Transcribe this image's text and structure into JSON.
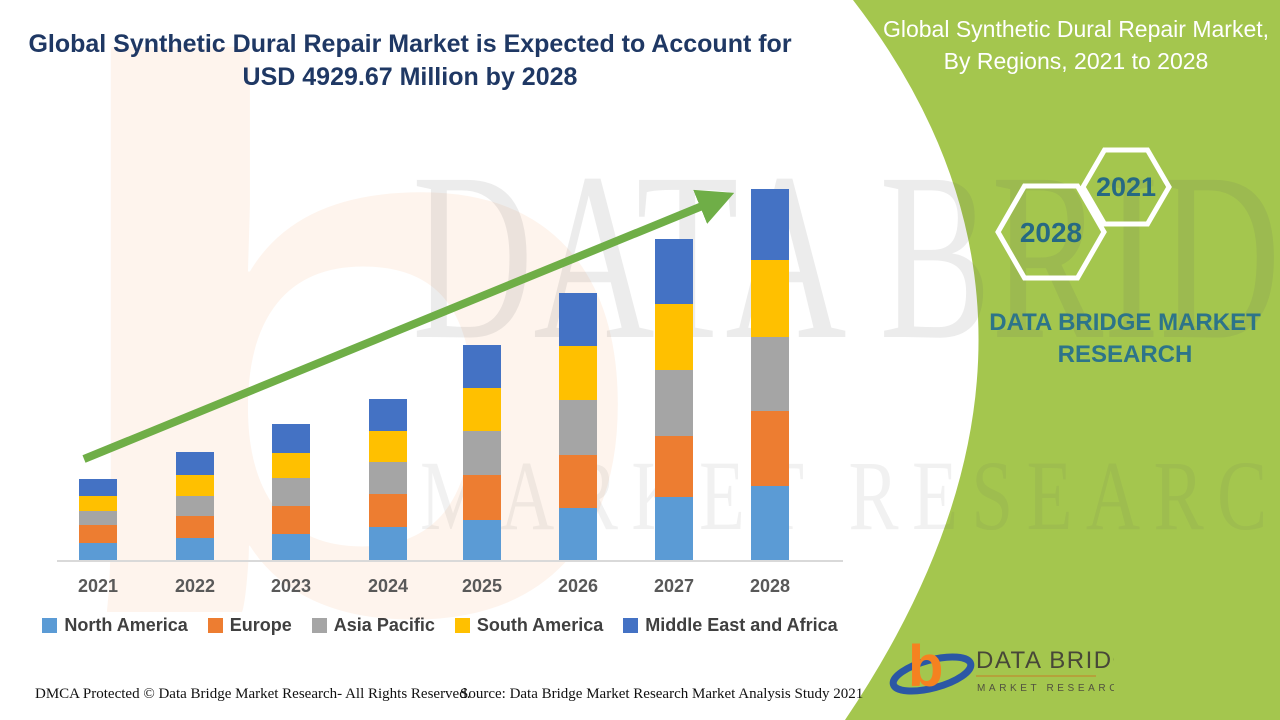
{
  "header": {
    "title_line1": "Global Synthetic Dural Repair Market is Expected to Account for",
    "title_line2": "USD 4929.67 Million by 2028"
  },
  "side_panel": {
    "bg_color": "#A4C64E",
    "title": "Global Synthetic Dural Repair Market, By Regions, 2021 to 2028",
    "hexagons": [
      {
        "label": "2021"
      },
      {
        "label": "2028"
      }
    ],
    "brand_line1": "DATA BRIDGE MARKET",
    "brand_line2": "RESEARCH",
    "text_color": "#2D7489"
  },
  "chart_data": {
    "type": "bar",
    "subtype": "stacked-column",
    "title": "Global Synthetic Dural Repair Market is Expected to Account for USD 4929.67 Million by 2028",
    "units": "USD Million",
    "categories": [
      "2021",
      "2022",
      "2023",
      "2024",
      "2025",
      "2026",
      "2027",
      "2028"
    ],
    "series": [
      {
        "name": "North America",
        "color": "#5B9BD5",
        "values": [
          239,
          305,
          358,
          451,
          543,
          702,
          848,
          994
        ]
      },
      {
        "name": "Europe",
        "color": "#ED7D31",
        "values": [
          239,
          292,
          371,
          437,
          596,
          702,
          808,
          994
        ]
      },
      {
        "name": "Asia Pacific",
        "color": "#A5A5A5",
        "values": [
          186,
          265,
          371,
          424,
          583,
          729,
          875,
          981
        ]
      },
      {
        "name": "South America",
        "color": "#FFC000",
        "values": [
          199,
          278,
          331,
          411,
          570,
          716,
          875,
          1020
        ]
      },
      {
        "name": "Middle East and Africa",
        "color": "#4472C4",
        "values": [
          225,
          305,
          384,
          424,
          570,
          702,
          861,
          941
        ]
      }
    ],
    "totals_estimated": [
      1088,
      1445,
      1815,
      2147,
      2862,
      3551,
      4267,
      4930
    ],
    "annotations": [
      "green upward trend arrow across bar tops"
    ],
    "xlabel": "",
    "ylabel": "",
    "y_axis_shown": false,
    "grid": false,
    "legend_position": "bottom",
    "trend_arrow_color": "#6FAE47"
  },
  "footer": {
    "dmca": "DMCA Protected © Data Bridge Market Research- All Rights Reserved.",
    "source": "Source: Data Bridge Market Research Market Analysis Study 2021"
  },
  "logo": {
    "name_top": "DATA BRIDGE",
    "name_bottom": "MARKET RESEARCH",
    "b_color": "#F58220",
    "swoosh_color": "#2B57A5"
  },
  "watermark": {
    "letter": "b",
    "line1": "DATA BRIDGE",
    "line2": "MARKET RESEARCH"
  }
}
